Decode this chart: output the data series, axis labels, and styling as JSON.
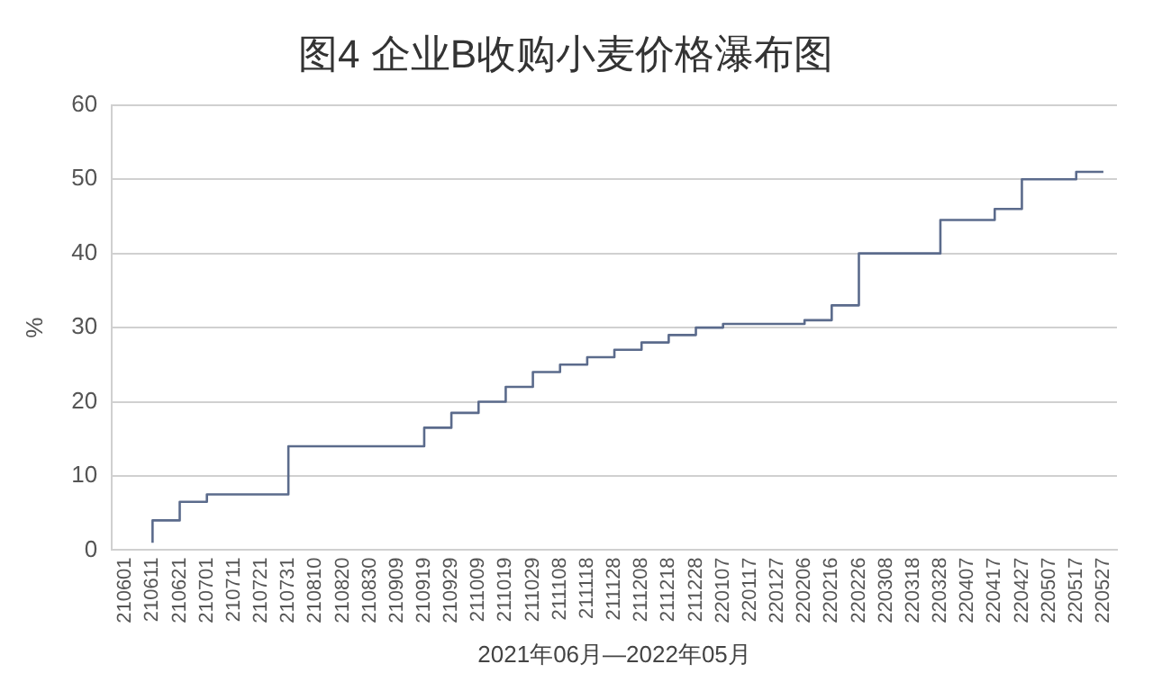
{
  "chart_data": {
    "type": "step",
    "title": "图4 企业B收购小麦价格瀑布图",
    "xlabel": "2021年06月—2022年05月",
    "ylabel": "%",
    "categories": [
      "210601",
      "210611",
      "210621",
      "210701",
      "210711",
      "210721",
      "210731",
      "210810",
      "210820",
      "210830",
      "210909",
      "210919",
      "210929",
      "211009",
      "211019",
      "211029",
      "211108",
      "211118",
      "211128",
      "211208",
      "211218",
      "211228",
      "220107",
      "220117",
      "220127",
      "220206",
      "220216",
      "220226",
      "220308",
      "220318",
      "220328",
      "220407",
      "220417",
      "220427",
      "220507",
      "220517",
      "220527"
    ],
    "series": [
      {
        "color": "#5b6b8c",
        "values": [
          null,
          1,
          4,
          6.5,
          7.5,
          7.5,
          7.5,
          14,
          14,
          14,
          14,
          14,
          16.5,
          18.5,
          20,
          22,
          24,
          25,
          26,
          27,
          28,
          29,
          30,
          30.5,
          30.5,
          30.5,
          31,
          33,
          40,
          40,
          40,
          44.5,
          44.5,
          46,
          50,
          50,
          51
        ]
      }
    ],
    "ylim": [
      0,
      60
    ],
    "yticks": [
      0,
      10,
      20,
      30,
      40,
      50,
      60
    ],
    "grid": "y",
    "legend": false,
    "marker": "none",
    "line_style": "solid"
  }
}
